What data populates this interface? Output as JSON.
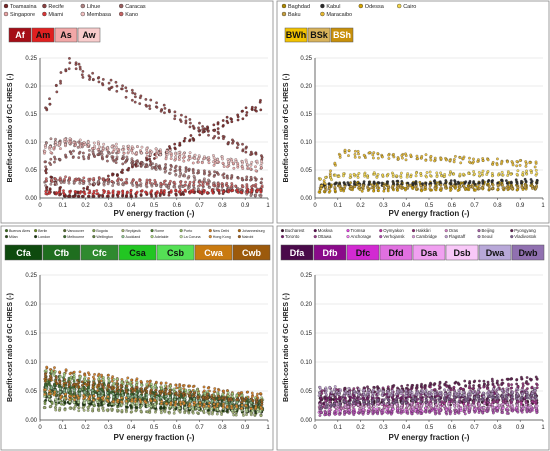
{
  "chart_data": [
    {
      "type": "scatter",
      "xlabel": "PV energy fraction (-)",
      "ylabel": "Benefit-cost ratio of GC HRES (-)",
      "xlim": [
        0,
        1
      ],
      "ylim": [
        0,
        0.25
      ],
      "x_ticks": [
        "0",
        "0.1",
        "0.2",
        "0.3",
        "0.4",
        "0.5",
        "0.6",
        "0.7",
        "0.8",
        "0.9",
        "1"
      ],
      "y_ticks": [
        "0.00",
        "0.05",
        "0.10",
        "0.15",
        "0.20",
        "0.25"
      ],
      "legend_position": "top-left",
      "climate_classes": [
        {
          "label": "Af",
          "color": "#a50d16"
        },
        {
          "label": "Am",
          "color": "#e02020"
        },
        {
          "label": "As",
          "color": "#f2a7a7"
        },
        {
          "label": "Aw",
          "color": "#f8cccc"
        }
      ],
      "series": [
        {
          "name": "Toamasina",
          "color": "#7a2626",
          "bands": [
            [
              0.06,
              0.0,
              0.17
            ],
            [
              0.022,
              0.0,
              0.014
            ]
          ]
        },
        {
          "name": "Recife",
          "color": "#8b4040",
          "bands": [
            [
              0.13,
              0.24,
              0.07
            ]
          ]
        },
        {
          "name": "Lihue",
          "color": "#b28686",
          "bands": [
            [
              0.1,
              0.1,
              0.0
            ],
            [
              0.025,
              0.03,
              0.012
            ]
          ]
        },
        {
          "name": "Caracas",
          "color": "#9c5f5f",
          "bands": [
            [
              0.055,
              0.08,
              0.03
            ]
          ]
        },
        {
          "name": "Singapore",
          "color": "#e9a4a4",
          "bands": [
            [
              0.075,
              0.1,
              0.05
            ]
          ]
        },
        {
          "name": "Miami",
          "color": "#d93535",
          "bands": [
            [
              0.01,
              0.01,
              0.012
            ]
          ]
        },
        {
          "name": "Membasa",
          "color": "#f1c1c1",
          "bands": [
            [
              0.085,
              0.1,
              0.06
            ]
          ]
        },
        {
          "name": "Kano",
          "color": "#c86464",
          "bands": [
            [
              0.03,
              0.035,
              0.02
            ]
          ]
        }
      ]
    },
    {
      "type": "scatter",
      "xlabel": "PV energy fraction (-)",
      "ylabel": "Benefit-cost ratio of GC HRES (-)",
      "xlim": [
        0,
        1
      ],
      "ylim": [
        0,
        0.25
      ],
      "x_ticks": [
        "0",
        "0.1",
        "0.2",
        "0.3",
        "0.4",
        "0.5",
        "0.6",
        "0.7",
        "0.8",
        "0.9",
        "1"
      ],
      "y_ticks": [
        "0.00",
        "0.05",
        "0.10",
        "0.15",
        "0.20",
        "0.25"
      ],
      "legend_position": "top-left",
      "climate_classes": [
        {
          "label": "BWh",
          "color": "#f2c200"
        },
        {
          "label": "BSk",
          "color": "#d8b25a"
        },
        {
          "label": "BSh",
          "color": "#c8900a"
        }
      ],
      "series": [
        {
          "name": "Baghdad",
          "color": "#b08a00",
          "bands": [
            [
              0.02,
              0.025,
              0.025
            ]
          ]
        },
        {
          "name": "Kabul",
          "color": "#2a2a2a",
          "bands": [
            [
              0.02,
              0.025,
              0.03
            ]
          ]
        },
        {
          "name": "Odessa",
          "color": "#d6a400",
          "bands": [
            [
              0.012,
              0.015,
              0.018
            ]
          ]
        },
        {
          "name": "Cairo",
          "color": "#f4d64a",
          "bands": [
            [
              0.03,
              0.04,
              0.045
            ]
          ]
        },
        {
          "name": "Baku",
          "color": "#c7a040",
          "bands": [
            [
              0.015,
              0.02,
              0.02
            ]
          ]
        },
        {
          "name": "Maracaibo",
          "color": "#e6b830",
          "bands": [
            [
              0.0,
              0.08,
              0.06
            ]
          ]
        }
      ]
    },
    {
      "type": "scatter",
      "xlabel": "PV energy fraction (-)",
      "ylabel": "Benefit-cost ratio of GC HRES (-)",
      "xlim": [
        0,
        1
      ],
      "ylim": [
        0,
        0.25
      ],
      "x_ticks": [
        "0",
        "0.1",
        "0.2",
        "0.3",
        "0.4",
        "0.5",
        "0.6",
        "0.7",
        "0.8",
        "0.9",
        "1"
      ],
      "y_ticks": [
        "0.00",
        "0.05",
        "0.10",
        "0.15",
        "0.20",
        "0.25"
      ],
      "legend_position": "top",
      "climate_classes": [
        {
          "label": "Cfa",
          "color": "#0e4a0e"
        },
        {
          "label": "Cfb",
          "color": "#1f6e1f"
        },
        {
          "label": "Cfc",
          "color": "#2f8a2f"
        },
        {
          "label": "Csa",
          "color": "#22c622"
        },
        {
          "label": "Csb",
          "color": "#55e055"
        },
        {
          "label": "Cwa",
          "color": "#c97a10"
        },
        {
          "label": "Cwb",
          "color": "#9c5a0c"
        }
      ],
      "series": [
        {
          "name": "Buenos Aires",
          "color": "#3a6b1a",
          "bands": [
            [
              0.06,
              0.05,
              0.02
            ]
          ]
        },
        {
          "name": "Berlin",
          "color": "#6b8e23",
          "bands": [
            [
              0.05,
              0.04,
              0.02
            ]
          ]
        },
        {
          "name": "Vancouver",
          "color": "#556b2f",
          "bands": [
            [
              0.045,
              0.04,
              0.02
            ]
          ]
        },
        {
          "name": "Bogota",
          "color": "#7fa050",
          "bands": [
            [
              0.03,
              0.03,
              0.015
            ]
          ]
        },
        {
          "name": "Reykjavik",
          "color": "#a0b070",
          "bands": [
            [
              0.02,
              0.02,
              0.01
            ]
          ]
        },
        {
          "name": "Rome",
          "color": "#4a7a30",
          "bands": [
            [
              0.08,
              0.07,
              0.03
            ]
          ]
        },
        {
          "name": "Porto",
          "color": "#8ab060",
          "bands": [
            [
              0.07,
              0.06,
              0.03
            ]
          ]
        },
        {
          "name": "New Delhi",
          "color": "#d07a20",
          "bands": [
            [
              0.09,
              0.08,
              0.04
            ]
          ]
        },
        {
          "name": "Johannesburg",
          "color": "#b06a10",
          "bands": [
            [
              0.075,
              0.06,
              0.03
            ]
          ]
        },
        {
          "name": "Milan",
          "color": "#2e4e1e",
          "bands": [
            [
              0.06,
              0.05,
              0.025
            ]
          ]
        },
        {
          "name": "London",
          "color": "#1c3a10",
          "bands": [
            [
              0.04,
              0.03,
              0.015
            ]
          ]
        },
        {
          "name": "Melbourne",
          "color": "#3f6f2f",
          "bands": [
            [
              0.065,
              0.055,
              0.03
            ]
          ]
        },
        {
          "name": "Wellington",
          "color": "#608040",
          "bands": [
            [
              0.05,
              0.045,
              0.02
            ]
          ]
        },
        {
          "name": "Auckland",
          "color": "#90c090",
          "bands": [
            [
              0.055,
              0.05,
              0.025
            ]
          ]
        },
        {
          "name": "Adelaide",
          "color": "#a8d080",
          "bands": [
            [
              0.085,
              0.075,
              0.035
            ]
          ]
        },
        {
          "name": "La Coruna",
          "color": "#c0e0a0",
          "bands": [
            [
              0.04,
              0.035,
              0.015
            ]
          ]
        },
        {
          "name": "Hong Kong",
          "color": "#e09030",
          "bands": [
            [
              0.05,
              0.04,
              0.02
            ]
          ]
        },
        {
          "name": "Nairobi",
          "color": "#a06020",
          "bands": [
            [
              0.08,
              0.065,
              0.03
            ]
          ]
        }
      ]
    },
    {
      "type": "scatter",
      "xlabel": "PV energy fraction (-)",
      "ylabel": "Benefit-cost ratio of GC HRES (-)",
      "xlim": [
        0,
        1
      ],
      "ylim": [
        0,
        0.25
      ],
      "x_ticks": [
        "0",
        "0.1",
        "0.2",
        "0.3",
        "0.4",
        "0.5",
        "0.6",
        "0.7",
        "0.8",
        "0.9",
        "1"
      ],
      "y_ticks": [
        "0.00",
        "0.05",
        "0.10",
        "0.15",
        "0.20",
        "0.25"
      ],
      "legend_position": "top",
      "climate_classes": [
        {
          "label": "Dfa",
          "color": "#4a0a4a"
        },
        {
          "label": "Dfb",
          "color": "#8a0a8a"
        },
        {
          "label": "Dfc",
          "color": "#d22ad2"
        },
        {
          "label": "Dfd",
          "color": "#e070e0"
        },
        {
          "label": "Dsa",
          "color": "#f0a0f0"
        },
        {
          "label": "Dsb",
          "color": "#f8c8f8"
        },
        {
          "label": "Dwa",
          "color": "#b8a8d8"
        },
        {
          "label": "Dwb",
          "color": "#9070b0"
        }
      ],
      "series": [
        {
          "name": "Bucharest",
          "color": "#3a0a2a",
          "bands": [
            [
              0.04,
              0.03,
              0.03
            ]
          ]
        },
        {
          "name": "Moskva",
          "color": "#5a1050",
          "bands": [
            [
              0.03,
              0.035,
              0.04
            ]
          ]
        },
        {
          "name": "Tromsø",
          "color": "#e040e0",
          "bands": [
            [
              0.01,
              0.015,
              0.02
            ]
          ]
        },
        {
          "name": "Oymyakon",
          "color": "#c030a0",
          "bands": [
            [
              0.02,
              0.025,
              0.03
            ]
          ]
        },
        {
          "name": "Hakkâri",
          "color": "#8a2a70",
          "bands": [
            [
              0.05,
              0.05,
              0.06
            ]
          ]
        },
        {
          "name": "Oras",
          "color": "#d080c0",
          "bands": [
            [
              0.02,
              0.02,
              0.02
            ]
          ]
        },
        {
          "name": "Beijing",
          "color": "#a060a0",
          "bands": [
            [
              0.035,
              0.04,
              0.05
            ]
          ]
        },
        {
          "name": "Pyongyang",
          "color": "#602050",
          "bands": [
            [
              0.03,
              0.05,
              0.07
            ]
          ]
        },
        {
          "name": "Toronto",
          "color": "#7a1a6a",
          "bands": [
            [
              0.04,
              0.04,
              0.045
            ]
          ]
        },
        {
          "name": "Ottawa",
          "color": "#9a3a8a",
          "bands": [
            [
              0.03,
              0.03,
              0.035
            ]
          ]
        },
        {
          "name": "Anchorage",
          "color": "#f080f0",
          "bands": [
            [
              0.015,
              0.015,
              0.02
            ]
          ]
        },
        {
          "name": "Verhojansk",
          "color": "#b050b0",
          "bands": [
            [
              0.01,
              0.012,
              0.015
            ]
          ]
        },
        {
          "name": "Cambridge",
          "color": "#e0a0e0",
          "bands": [
            [
              0.025,
              0.025,
              0.025
            ]
          ]
        },
        {
          "name": "Flagstaff",
          "color": "#c0a0d0",
          "bands": [
            [
              0.06,
              0.05,
              0.04
            ]
          ]
        },
        {
          "name": "Seoul",
          "color": "#b090c0",
          "bands": [
            [
              0.045,
              0.045,
              0.05
            ]
          ]
        },
        {
          "name": "Vladivostok",
          "color": "#806090",
          "bands": [
            [
              0.02,
              0.03,
              0.04
            ]
          ]
        }
      ]
    }
  ]
}
